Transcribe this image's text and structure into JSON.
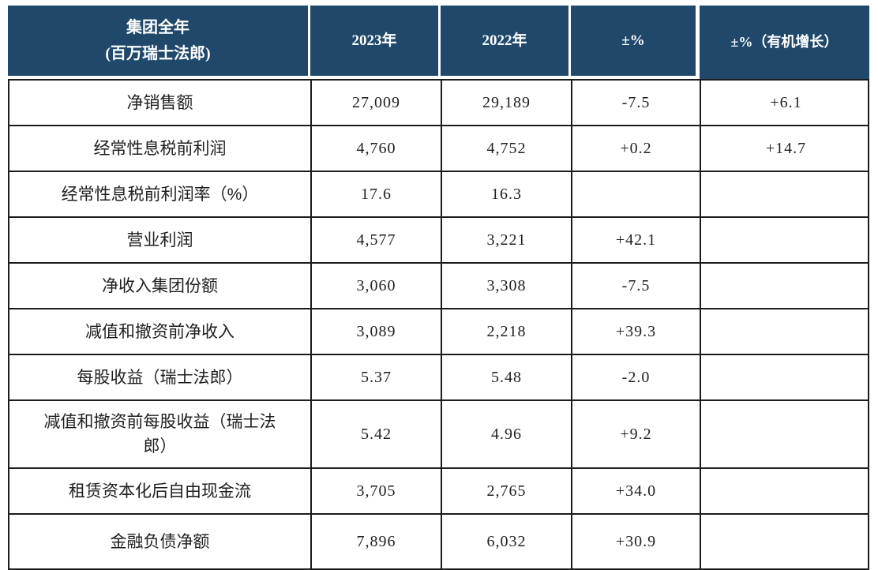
{
  "colors": {
    "header_bg": "#20486b",
    "header_text": "#ffffff",
    "border": "#1c1c1c"
  },
  "chart_data": {
    "type": "table",
    "title": "集团全年 (百万瑞士法郎)",
    "header": {
      "col1_line1": "集团全年",
      "col1_line2": "(百万瑞士法郎)",
      "cols": [
        "2023年",
        "2022年",
        "±%",
        "±%（有机增长）"
      ]
    },
    "rows": [
      {
        "cells": [
          "净销售额",
          "27,009",
          "29,189",
          "-7.5",
          "+6.1"
        ]
      },
      {
        "cells": [
          "经常性息税前利润",
          "4,760",
          "4,752",
          "+0.2",
          "+14.7"
        ]
      },
      {
        "cells": [
          "经常性息税前利润率（%）",
          "17.6",
          "16.3",
          "",
          ""
        ]
      },
      {
        "cells": [
          "营业利润",
          "4,577",
          "3,221",
          "+42.1",
          ""
        ]
      },
      {
        "cells": [
          "净收入集团份额",
          "3,060",
          "3,308",
          "-7.5",
          ""
        ]
      },
      {
        "cells": [
          "减值和撤资前净收入",
          "3,089",
          "2,218",
          "+39.3",
          ""
        ]
      },
      {
        "cells": [
          "每股收益（瑞士法郎）",
          "5.37",
          "5.48",
          "-2.0",
          ""
        ]
      },
      {
        "cells": [
          "减值和撤资前每股收益（瑞士法郎）",
          "5.42",
          "4.96",
          "+9.2",
          ""
        ]
      },
      {
        "cells": [
          "租赁资本化后自由现金流",
          "3,705",
          "2,765",
          "+34.0",
          ""
        ]
      },
      {
        "cells": [
          "金融负债净额",
          "7,896",
          "6,032",
          "+30.9",
          ""
        ]
      }
    ]
  }
}
